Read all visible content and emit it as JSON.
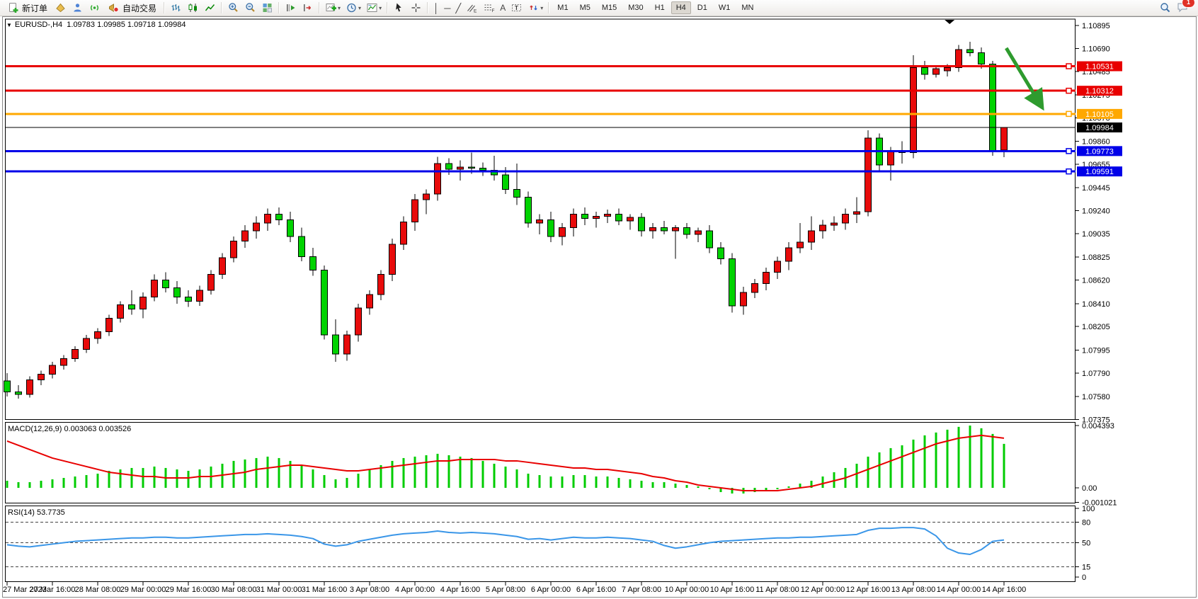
{
  "toolbar": {
    "new_order_label": "新订单",
    "auto_trading_label": "自动交易",
    "timeframes": [
      "M1",
      "M5",
      "M15",
      "M30",
      "H1",
      "H4",
      "D1",
      "W1",
      "MN"
    ],
    "active_timeframe": "H4",
    "notification_count": "1"
  },
  "window": {
    "title": "EURUSD-,H4  1.09783 1.09985 1.09718 1.09984"
  },
  "chart_data": {
    "type": "candlestick",
    "symbol": "EURUSD-",
    "timeframe": "H4",
    "current_bar": {
      "open": 1.09783,
      "high": 1.09985,
      "low": 1.09718,
      "close": 1.09984
    },
    "bull_color": "#e80b0b",
    "bear_color": "#00d300",
    "y_axis_ticks": [
      "1.10895",
      "1.10690",
      "1.10485",
      "1.10275",
      "1.10070",
      "1.09860",
      "1.09655",
      "1.09445",
      "1.09240",
      "1.09035",
      "1.08825",
      "1.08620",
      "1.08410",
      "1.08205",
      "1.07995",
      "1.07790",
      "1.07580",
      "1.07375"
    ],
    "x_axis_labels": [
      "27 Mar 2023",
      "27 Mar 16:00",
      "28 Mar 08:00",
      "29 Mar 00:00",
      "29 Mar 16:00",
      "30 Mar 08:00",
      "31 Mar 00:00",
      "31 Mar 16:00",
      "3 Apr 08:00",
      "4 Apr 00:00",
      "4 Apr 16:00",
      "5 Apr 08:00",
      "6 Apr 00:00",
      "6 Apr 16:00",
      "7 Apr 08:00",
      "10 Apr 00:00",
      "10 Apr 16:00",
      "11 Apr 08:00",
      "12 Apr 00:00",
      "12 Apr 16:00",
      "13 Apr 08:00",
      "14 Apr 00:00",
      "14 Apr 16:00"
    ],
    "candles": [
      [
        1.0772,
        1.0779,
        1.0758,
        1.0762
      ],
      [
        1.0762,
        1.0768,
        1.0756,
        1.076
      ],
      [
        1.076,
        1.0776,
        1.0757,
        1.0773
      ],
      [
        1.0773,
        1.0781,
        1.0768,
        1.0778
      ],
      [
        1.0778,
        1.0789,
        1.0774,
        1.0786
      ],
      [
        1.0786,
        1.0795,
        1.0782,
        1.0792
      ],
      [
        1.0792,
        1.0803,
        1.0789,
        1.08
      ],
      [
        1.08,
        1.0813,
        1.0797,
        1.081
      ],
      [
        1.081,
        1.0819,
        1.0805,
        1.0816
      ],
      [
        1.0816,
        1.0831,
        1.0812,
        1.0828
      ],
      [
        1.0828,
        1.0843,
        1.0824,
        1.084
      ],
      [
        1.084,
        1.0853,
        1.0831,
        1.0836
      ],
      [
        1.0836,
        1.0851,
        1.0828,
        1.0847
      ],
      [
        1.0847,
        1.0867,
        1.0843,
        1.0862
      ],
      [
        1.0862,
        1.0869,
        1.0851,
        1.0855
      ],
      [
        1.0855,
        1.0861,
        1.0841,
        1.0847
      ],
      [
        1.0847,
        1.0853,
        1.0838,
        1.0843
      ],
      [
        1.0843,
        1.0857,
        1.0839,
        1.0853
      ],
      [
        1.0853,
        1.0871,
        1.0849,
        1.0867
      ],
      [
        1.0867,
        1.0886,
        1.0863,
        1.0882
      ],
      [
        1.0882,
        1.0901,
        1.0878,
        1.0897
      ],
      [
        1.0897,
        1.0911,
        1.0891,
        1.0906
      ],
      [
        1.0906,
        1.0919,
        1.0899,
        1.0913
      ],
      [
        1.0913,
        1.0926,
        1.0906,
        1.0921
      ],
      [
        1.0921,
        1.0927,
        1.0911,
        1.0916
      ],
      [
        1.0916,
        1.0923,
        1.0896,
        1.0901
      ],
      [
        1.0901,
        1.0909,
        1.0879,
        1.0883
      ],
      [
        1.0883,
        1.0891,
        1.0866,
        1.0871
      ],
      [
        1.0871,
        1.0875,
        1.0809,
        1.0813
      ],
      [
        1.0813,
        1.0827,
        1.0789,
        1.0796
      ],
      [
        1.0796,
        1.0817,
        1.079,
        1.0813
      ],
      [
        1.0813,
        1.0841,
        1.0807,
        1.0837
      ],
      [
        1.0837,
        1.0853,
        1.0831,
        1.0849
      ],
      [
        1.0849,
        1.0871,
        1.0844,
        1.0867
      ],
      [
        1.0867,
        1.0899,
        1.0861,
        1.0894
      ],
      [
        1.0894,
        1.0919,
        1.0889,
        1.0914
      ],
      [
        1.0914,
        1.0939,
        1.0906,
        1.0934
      ],
      [
        1.0934,
        1.0943,
        1.0921,
        1.0939
      ],
      [
        1.0939,
        1.0972,
        1.0933,
        1.0966
      ],
      [
        1.0966,
        1.0971,
        1.0956,
        1.0961
      ],
      [
        1.0961,
        1.0969,
        1.0951,
        1.0963
      ],
      [
        1.0963,
        1.0976,
        1.0957,
        1.0962
      ],
      [
        1.0962,
        1.0967,
        1.0955,
        1.096
      ],
      [
        1.096,
        1.0973,
        1.0951,
        1.0956
      ],
      [
        1.0956,
        1.0963,
        1.0939,
        1.0943
      ],
      [
        1.0943,
        1.0966,
        1.0929,
        1.0936
      ],
      [
        1.0936,
        1.0941,
        1.0909,
        1.0913
      ],
      [
        1.0913,
        1.0921,
        1.0903,
        1.0916
      ],
      [
        1.0916,
        1.0923,
        1.0896,
        1.0901
      ],
      [
        1.0901,
        1.0913,
        1.0893,
        1.0909
      ],
      [
        1.0909,
        1.0926,
        1.0901,
        1.0921
      ],
      [
        1.0921,
        1.0927,
        1.0911,
        1.0917
      ],
      [
        1.0917,
        1.0923,
        1.0909,
        1.0919
      ],
      [
        1.0919,
        1.0925,
        1.0913,
        1.0921
      ],
      [
        1.0921,
        1.0926,
        1.0911,
        1.0915
      ],
      [
        1.0915,
        1.0921,
        1.0907,
        1.0918
      ],
      [
        1.0918,
        1.0922,
        1.0901,
        1.0906
      ],
      [
        1.0906,
        1.0913,
        1.0899,
        1.0909
      ],
      [
        1.0909,
        1.0915,
        1.0903,
        1.0906
      ],
      [
        1.0906,
        1.0911,
        1.0881,
        1.0909
      ],
      [
        1.0909,
        1.0913,
        1.0899,
        1.0903
      ],
      [
        1.0903,
        1.0909,
        1.0896,
        1.0906
      ],
      [
        1.0906,
        1.0911,
        1.0886,
        1.0891
      ],
      [
        1.0891,
        1.0896,
        1.0876,
        1.0881
      ],
      [
        1.0881,
        1.0886,
        1.0833,
        1.0839
      ],
      [
        1.0839,
        1.0856,
        1.0831,
        1.0851
      ],
      [
        1.0851,
        1.0863,
        1.0846,
        1.0859
      ],
      [
        1.0859,
        1.0873,
        1.0853,
        1.0869
      ],
      [
        1.0869,
        1.0883,
        1.0863,
        1.0879
      ],
      [
        1.0879,
        1.0896,
        1.0871,
        1.0891
      ],
      [
        1.0891,
        1.0913,
        1.0886,
        1.0896
      ],
      [
        1.0896,
        1.0919,
        1.0889,
        1.0906
      ],
      [
        1.0906,
        1.0916,
        1.0899,
        1.0911
      ],
      [
        1.0911,
        1.0919,
        1.0906,
        1.0913
      ],
      [
        1.0913,
        1.0926,
        1.0907,
        1.0921
      ],
      [
        1.0921,
        1.0936,
        1.0913,
        1.0923
      ],
      [
        1.0923,
        1.0996,
        1.0919,
        1.0989
      ],
      [
        1.0989,
        1.0993,
        1.0959,
        1.0965
      ],
      [
        1.0965,
        1.0981,
        1.0951,
        1.0977
      ],
      [
        1.0977,
        1.0986,
        1.0966,
        1.0976
      ],
      [
        1.0976,
        1.1063,
        1.0971,
        1.1052
      ],
      [
        1.1052,
        1.1058,
        1.1041,
        1.1046
      ],
      [
        1.1046,
        1.1054,
        1.1043,
        1.1051
      ],
      [
        1.1049,
        1.1055,
        1.1044,
        1.1052
      ],
      [
        1.1052,
        1.1072,
        1.1048,
        1.1068
      ],
      [
        1.1068,
        1.1075,
        1.1062,
        1.1065
      ],
      [
        1.1065,
        1.107,
        1.1051,
        1.1055
      ],
      [
        1.1055,
        1.1058,
        1.0973,
        1.0978
      ],
      [
        1.09783,
        1.09985,
        1.09718,
        1.09984
      ]
    ],
    "horizontal_lines": [
      {
        "price": 1.10531,
        "label": "1.10531",
        "color": "#e80000"
      },
      {
        "price": 1.10312,
        "label": "1.10312",
        "color": "#e80000"
      },
      {
        "price": 1.10105,
        "label": "1.10105",
        "color": "#ffa800"
      },
      {
        "price": 1.09773,
        "label": "1.09773",
        "color": "#0000e8"
      },
      {
        "price": 1.09591,
        "label": "1.09591",
        "color": "#0000e8"
      }
    ],
    "current_price_line": {
      "price": 1.09984,
      "label": "1.09984",
      "color": "#000000"
    },
    "shift_marker_bar": 83.2,
    "arrow_annotation": {
      "from_bar": 88.2,
      "from_price": 1.10693,
      "to_bar": 91.3,
      "to_price": 1.10174,
      "color": "#2e9b2e"
    },
    "macd": {
      "label": "MACD(12,26,9) 0.003063 0.003526",
      "histogram_color": "#00cc00",
      "signal_color": "#e80000",
      "scale": [
        {
          "value": 0.004393,
          "label": "0.004393"
        },
        {
          "value": 0,
          "label": "0.00"
        },
        {
          "value": -0.001021,
          "label": "-0.001021"
        }
      ],
      "histogram": [
        0.0005,
        0.0004,
        0.0004,
        0.0005,
        0.0006,
        0.0007,
        0.0008,
        0.0009,
        0.001,
        0.0012,
        0.0013,
        0.0014,
        0.0014,
        0.0015,
        0.0014,
        0.0013,
        0.0012,
        0.0013,
        0.0015,
        0.0017,
        0.0019,
        0.002,
        0.0021,
        0.0022,
        0.0021,
        0.0019,
        0.0016,
        0.0013,
        0.0009,
        0.0006,
        0.0007,
        0.001,
        0.0013,
        0.0016,
        0.0019,
        0.0021,
        0.0022,
        0.0023,
        0.0024,
        0.0023,
        0.0022,
        0.0021,
        0.0019,
        0.0017,
        0.0015,
        0.0013,
        0.001,
        0.0009,
        0.0008,
        0.0008,
        0.0009,
        0.0009,
        0.0008,
        0.0008,
        0.0007,
        0.0006,
        0.0005,
        0.0004,
        0.0004,
        0.0003,
        0.0002,
        0.0001,
        -0.0001,
        -0.0003,
        -0.0004,
        -0.0004,
        -0.0003,
        -0.0002,
        -0.0001,
        0.0001,
        0.0003,
        0.0005,
        0.0008,
        0.0011,
        0.0014,
        0.0017,
        0.0022,
        0.0025,
        0.0028,
        0.003,
        0.0034,
        0.0037,
        0.0039,
        0.0041,
        0.0043,
        0.00439,
        0.0042,
        0.0038,
        0.0031
      ],
      "signal": [
        0.0033,
        0.003,
        0.0027,
        0.0024,
        0.0021,
        0.0019,
        0.0017,
        0.0015,
        0.0013,
        0.0011,
        0.001,
        0.0009,
        0.0008,
        0.0008,
        0.0007,
        0.0007,
        0.0007,
        0.0008,
        0.0008,
        0.0009,
        0.001,
        0.0011,
        0.0013,
        0.0014,
        0.0015,
        0.0016,
        0.0016,
        0.0015,
        0.0014,
        0.0013,
        0.0012,
        0.0012,
        0.0013,
        0.0014,
        0.0015,
        0.0016,
        0.0017,
        0.0018,
        0.0019,
        0.0019,
        0.002,
        0.002,
        0.002,
        0.002,
        0.0019,
        0.0019,
        0.0018,
        0.0017,
        0.0016,
        0.0015,
        0.0014,
        0.0014,
        0.0013,
        0.0013,
        0.0012,
        0.0011,
        0.001,
        0.0008,
        0.0007,
        0.0005,
        0.0004,
        0.0002,
        0.0001,
        0.0,
        -0.0001,
        -0.0002,
        -0.0002,
        -0.0002,
        -0.0002,
        -0.0001,
        0.0,
        0.0001,
        0.0003,
        0.0005,
        0.0007,
        0.001,
        0.0013,
        0.0016,
        0.0019,
        0.0022,
        0.0025,
        0.0028,
        0.0031,
        0.0033,
        0.0035,
        0.0036,
        0.0037,
        0.0036,
        0.0035
      ]
    },
    "rsi": {
      "label": "RSI(14) 53.7735",
      "color": "#3a96e8",
      "levels": [
        80,
        50,
        15
      ],
      "scale": [
        {
          "value": 100,
          "label": "100"
        },
        {
          "value": 80,
          "label": "80"
        },
        {
          "value": 50,
          "label": "50"
        },
        {
          "value": 15,
          "label": "15"
        },
        {
          "value": 0,
          "label": "0"
        }
      ],
      "values": [
        47,
        45,
        44,
        46,
        48,
        50,
        52,
        53,
        54,
        55,
        56,
        57,
        57,
        58,
        58,
        57,
        57,
        58,
        59,
        60,
        61,
        62,
        62,
        63,
        62,
        61,
        59,
        56,
        48,
        45,
        47,
        52,
        55,
        58,
        61,
        63,
        64,
        65,
        67,
        65,
        64,
        65,
        64,
        63,
        61,
        59,
        55,
        56,
        54,
        56,
        58,
        57,
        57,
        58,
        57,
        56,
        54,
        52,
        46,
        42,
        44,
        47,
        50,
        52,
        53,
        54,
        55,
        56,
        57,
        57,
        58,
        58,
        59,
        60,
        61,
        62,
        68,
        71,
        71,
        72,
        72,
        70,
        60,
        42,
        35,
        33,
        40,
        52,
        54
      ]
    }
  }
}
